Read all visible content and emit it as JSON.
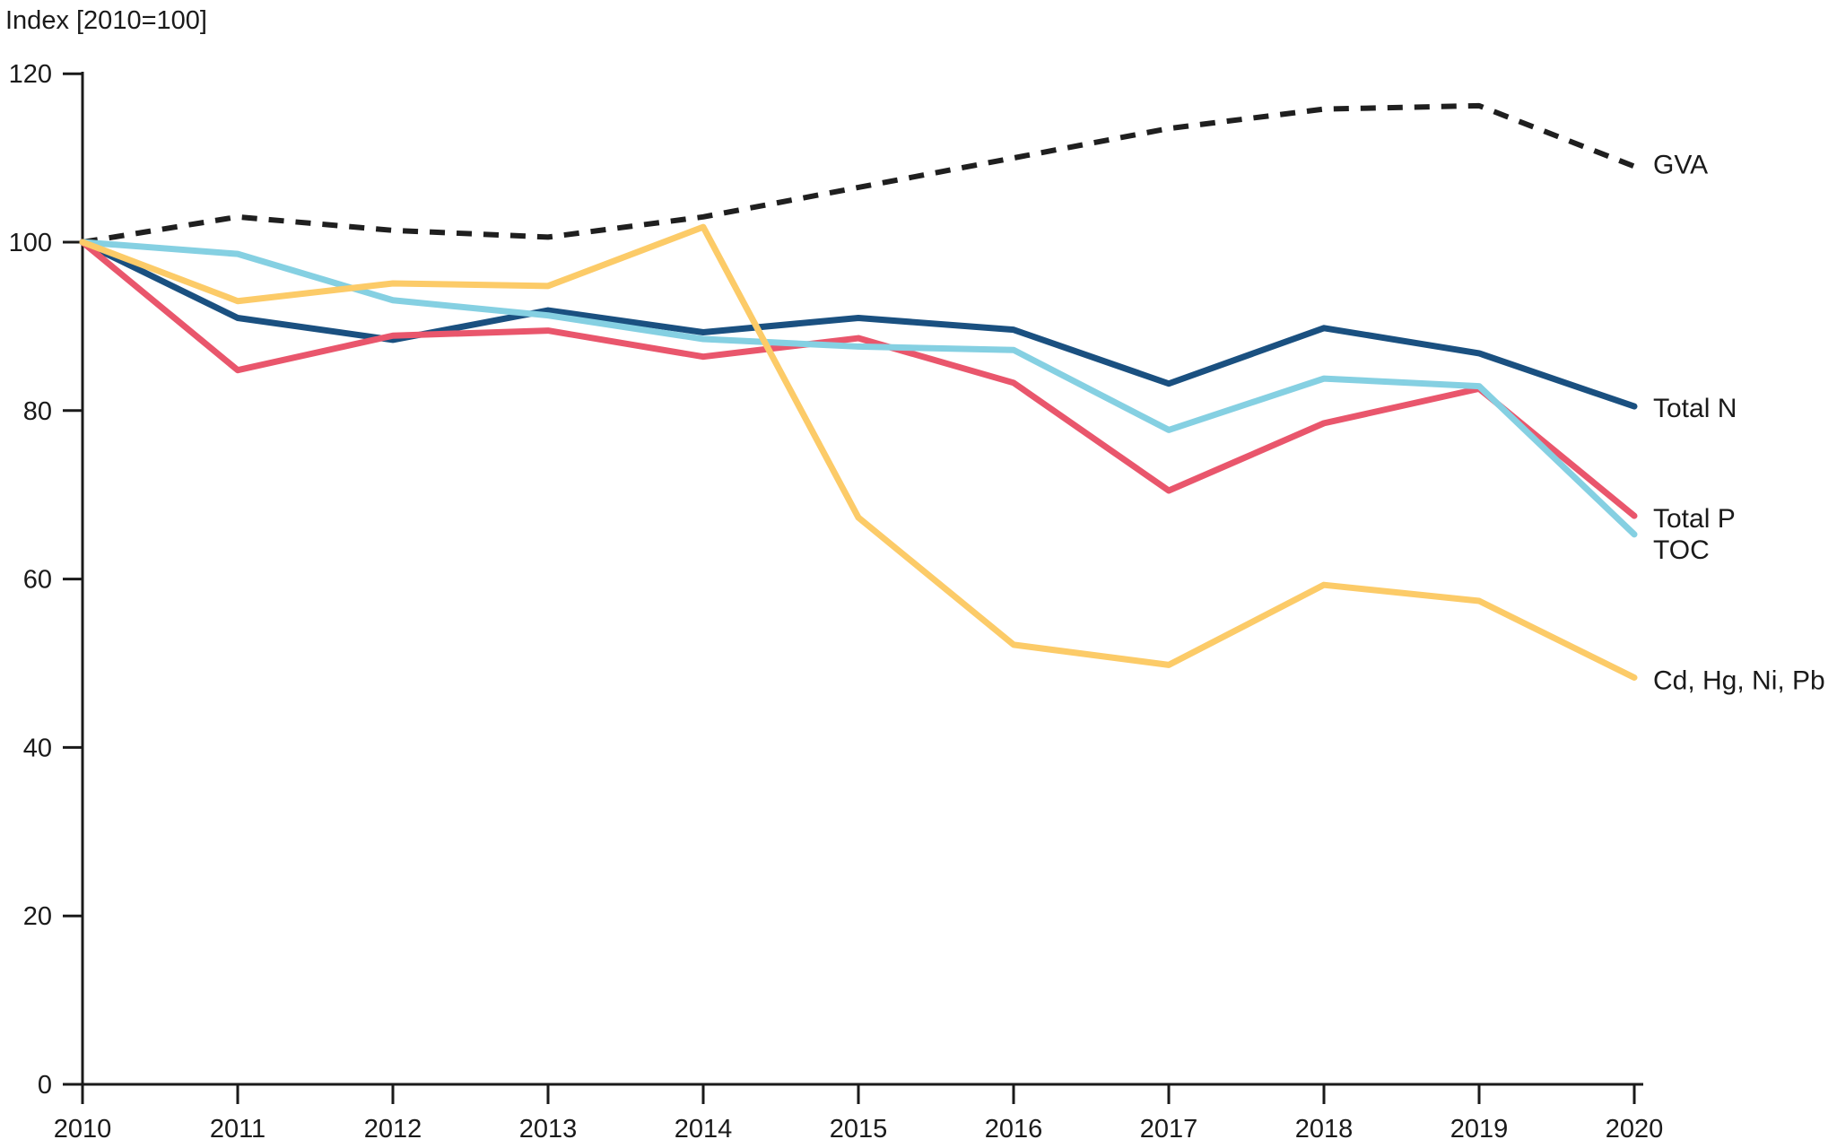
{
  "title": "Index [2010=100]",
  "colors": {
    "axis": "#1a1a1a",
    "gva": "#1f1f1f",
    "total_n": "#1a5080",
    "total_p": "#e9566c",
    "toc": "#85d0e2",
    "metals": "#fccb68"
  },
  "chart_data": {
    "type": "line",
    "title": "Index [2010=100]",
    "xlabel": "",
    "ylabel": "Index [2010=100]",
    "ylim": [
      0,
      120
    ],
    "yticks": [
      0,
      20,
      40,
      60,
      80,
      100,
      120
    ],
    "x": [
      2010,
      2011,
      2012,
      2013,
      2014,
      2015,
      2016,
      2017,
      2018,
      2019,
      2020
    ],
    "grid": false,
    "legend_position": "right-end-labels",
    "series": [
      {
        "name": "GVA",
        "color": "#1f1f1f",
        "dashed": true,
        "values": [
          100,
          103,
          101.4,
          100.6,
          103,
          106.5,
          110,
          113.5,
          115.8,
          116.2,
          109
        ]
      },
      {
        "name": "Total N",
        "color": "#1a5080",
        "dashed": false,
        "values": [
          100,
          91,
          88.4,
          91.9,
          89.3,
          91,
          89.6,
          83.2,
          89.8,
          86.8,
          80.5
        ]
      },
      {
        "name": "Total P",
        "color": "#e9566c",
        "dashed": false,
        "values": [
          100,
          84.8,
          88.9,
          89.5,
          86.4,
          88.6,
          83.3,
          70.5,
          78.5,
          82.6,
          67.5
        ]
      },
      {
        "name": "TOC",
        "color": "#85d0e2",
        "dashed": false,
        "values": [
          100,
          98.6,
          93.1,
          91.3,
          88.5,
          87.6,
          87.2,
          77.7,
          83.8,
          82.9,
          65.3
        ]
      },
      {
        "name": "Cd, Hg, Ni, Pb",
        "color": "#fccb68",
        "dashed": false,
        "values": [
          100,
          93,
          95.1,
          94.8,
          101.8,
          67.3,
          52.2,
          49.8,
          59.3,
          57.4,
          48.3
        ]
      }
    ]
  }
}
